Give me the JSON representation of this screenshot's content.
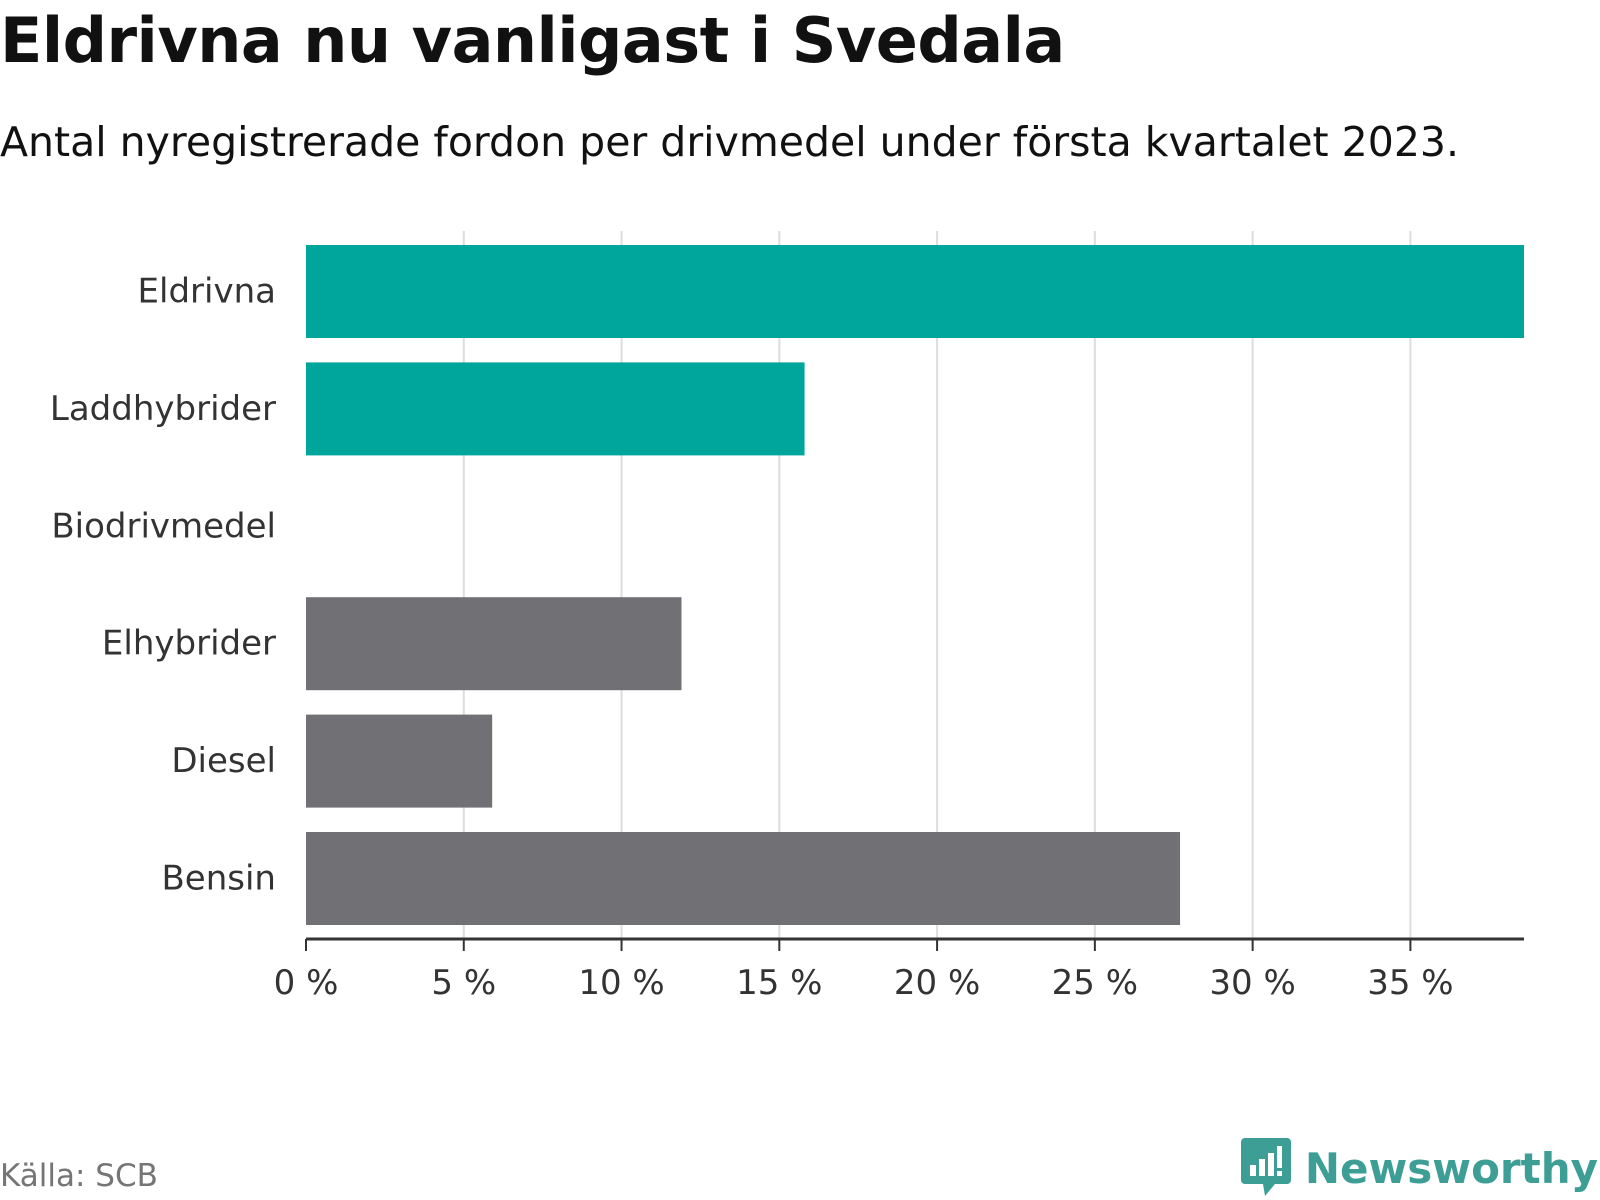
{
  "title": "Eldrivna nu vanligast i Svedala",
  "subtitle": "Antal nyregistrerade fordon per drivmedel under första kvartalet 2023.",
  "source": "Källa: SCB",
  "brand": "Newsworthy",
  "colors": {
    "highlight": "#00a59b",
    "other": "#707075",
    "grid": "#dddddd",
    "axis": "#333333",
    "brand": "#3d9e96"
  },
  "chart_data": {
    "type": "bar",
    "orientation": "horizontal",
    "categories": [
      "Eldrivna",
      "Laddhybrider",
      "Biodrivmedel",
      "Elhybrider",
      "Diesel",
      "Bensin"
    ],
    "values": [
      38.6,
      15.8,
      0,
      11.9,
      5.9,
      27.7
    ],
    "highlighted": [
      true,
      true,
      false,
      false,
      false,
      false
    ],
    "xlim": [
      0,
      38.6
    ],
    "xticks": [
      0,
      5,
      10,
      15,
      20,
      25,
      30,
      35
    ],
    "tick_labels": [
      "0 %",
      "5 %",
      "10 %",
      "15 %",
      "20 %",
      "25 %",
      "30 %",
      "35 %"
    ],
    "unit": "%",
    "grid": true,
    "legend": "none"
  }
}
